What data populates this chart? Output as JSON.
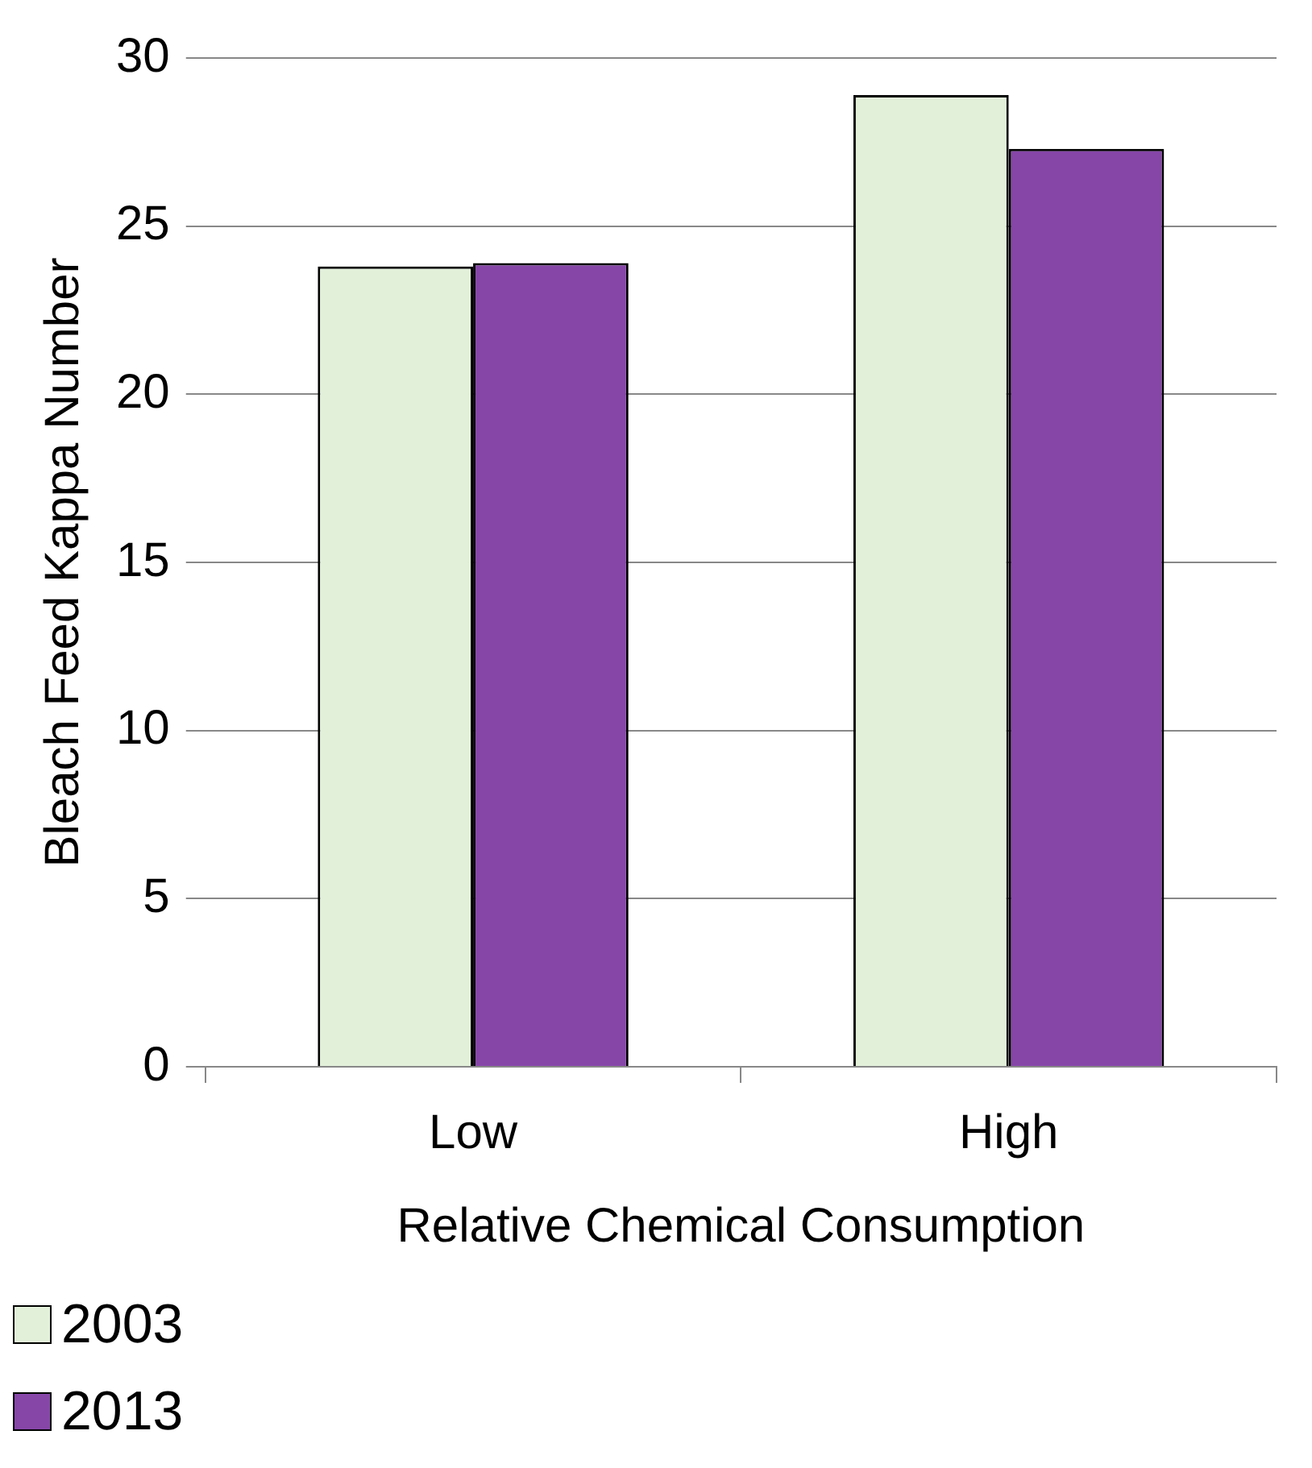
{
  "chart_data": {
    "type": "bar",
    "xlabel": "Relative Chemical Consumption",
    "ylabel": "Bleach Feed Kappa Number",
    "categories": [
      "Low",
      "High"
    ],
    "series": [
      {
        "name": "2003",
        "color": "#e2f0d9",
        "values": [
          23.8,
          28.9
        ]
      },
      {
        "name": "2013",
        "color": "#8646a8",
        "values": [
          23.9,
          27.3
        ]
      }
    ],
    "ylim": [
      0,
      30
    ],
    "yticks": [
      0,
      5,
      10,
      15,
      20,
      25,
      30
    ],
    "grid": "y",
    "legend": "bottom left"
  }
}
